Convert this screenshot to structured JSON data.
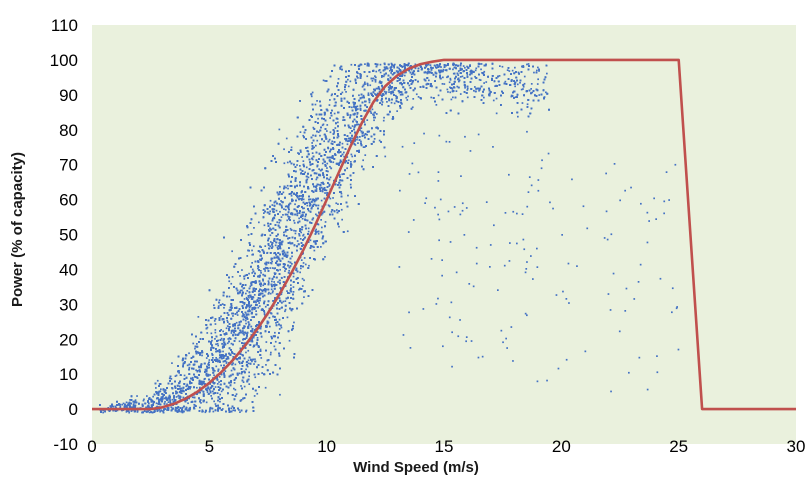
{
  "chart_data": {
    "type": "scatter",
    "title": "",
    "xlabel": "Wind Speed (m/s)",
    "ylabel": "Power (% of capacity)",
    "xlim": [
      0,
      30
    ],
    "ylim": [
      -10,
      110
    ],
    "x_ticks": [
      0,
      5,
      10,
      15,
      20,
      25,
      30
    ],
    "y_ticks": [
      -10,
      0,
      10,
      20,
      30,
      40,
      50,
      60,
      70,
      80,
      90,
      100,
      110
    ],
    "grid": false,
    "legend": "none",
    "plot_background": "#eaf1dd",
    "colors": {
      "scatter": "#4472c4",
      "power_curve": "#c0504d"
    },
    "series": [
      {
        "type": "scatter",
        "description_points": "measured power output vs wind speed",
        "approx_count": 12000,
        "cloud_envelope": {
          "x": [
            1,
            2,
            3,
            4,
            5,
            6,
            7,
            8,
            9,
            10,
            11,
            12,
            13,
            14,
            15,
            16,
            17,
            18,
            19
          ],
          "y_center": [
            0,
            0.5,
            2,
            5,
            11,
            19,
            30,
            43,
            57,
            70,
            81,
            89,
            94,
            96,
            96,
            95,
            94,
            93,
            93
          ],
          "y_spread": [
            1,
            1.5,
            3,
            5,
            8,
            10,
            12,
            13,
            13,
            12,
            10,
            8,
            5,
            4,
            4,
            4,
            4,
            4,
            4
          ]
        }
      },
      {
        "type": "line",
        "description_points": "manufacturer power curve",
        "x": [
          0,
          1,
          2,
          2.5,
          3,
          3.5,
          4,
          4.5,
          5,
          5.5,
          6,
          6.5,
          7,
          7.5,
          8,
          8.5,
          9,
          9.5,
          10,
          10.5,
          11,
          11.5,
          12,
          12.5,
          13,
          13.5,
          14,
          14.5,
          15,
          16,
          20,
          25,
          26,
          30
        ],
        "y": [
          0,
          0,
          0,
          0,
          0.5,
          1.5,
          3,
          5,
          7.5,
          10.5,
          14,
          18,
          22.5,
          27.5,
          33,
          39,
          45.5,
          52.5,
          60,
          67.5,
          75,
          82,
          88,
          92.5,
          95.5,
          97.5,
          98.8,
          99.5,
          100,
          100,
          100,
          100,
          0,
          0
        ]
      }
    ]
  }
}
